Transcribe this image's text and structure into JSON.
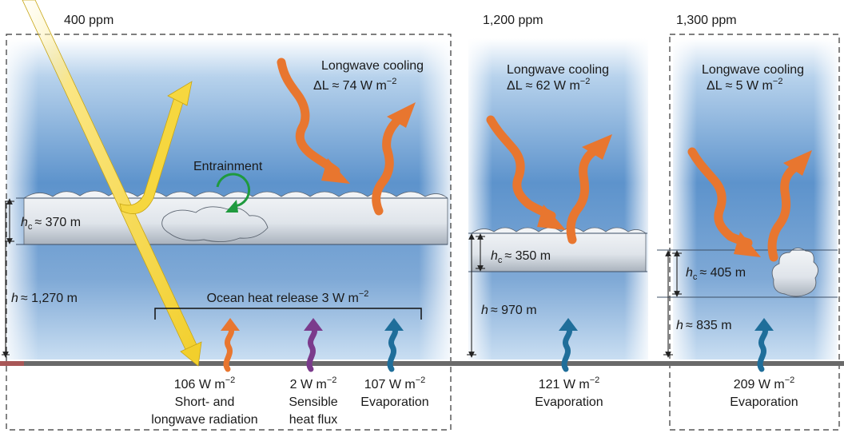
{
  "panels": [
    {
      "ppm": "400 ppm",
      "longwave_title": "Longwave cooling",
      "delta_label": "ΔL ≈ 74 W m",
      "delta_unit_exp": "−2",
      "hc_label": "≈ 370 m",
      "h_label": "≈ 1,270 m",
      "entrainment": "Entrainment",
      "ocean_heat": "Ocean heat release 3 W m",
      "ocean_heat_exp": "−2",
      "fluxes": [
        {
          "value": "106 W m",
          "exp": "−2",
          "line1": "Short- and",
          "line2": "longwave radiation",
          "color": "#e8762f"
        },
        {
          "value": "2 W m",
          "exp": "−2",
          "line1": "Sensible",
          "line2": "heat flux",
          "color": "#7b3b8c"
        },
        {
          "value": "107 W m",
          "exp": "−2",
          "line1": "Evaporation",
          "line2": "",
          "color": "#1f6e9a"
        }
      ]
    },
    {
      "ppm": "1,200 ppm",
      "longwave_title": "Longwave cooling",
      "delta_label": "ΔL ≈ 62 W m",
      "delta_unit_exp": "−2",
      "hc_label": "≈ 350 m",
      "h_label": "≈ 970 m",
      "fluxes": [
        {
          "value": "121 W m",
          "exp": "−2",
          "line1": "Evaporation",
          "color": "#1f6e9a"
        }
      ]
    },
    {
      "ppm": "1,300 ppm",
      "longwave_title": "Longwave cooling",
      "delta_label": "ΔL ≈ 5 W m",
      "delta_unit_exp": "−2",
      "hc_label": "≈ 405 m",
      "h_label": "≈ 835 m",
      "fluxes": [
        {
          "value": "209 W m",
          "exp": "−2",
          "line1": "Evaporation",
          "color": "#1f6e9a"
        }
      ]
    }
  ],
  "symbols": {
    "hc": "h",
    "hc_sub": "c",
    "h": "h"
  },
  "colors": {
    "sky_top": "#5b8fc7",
    "sky_bottom": "#cfe2f3",
    "longwave_arrow": "#e8762f",
    "sun_arrow": "#f3d23a",
    "entrainment_arrow": "#1f9a3e",
    "ground": "#666666"
  }
}
